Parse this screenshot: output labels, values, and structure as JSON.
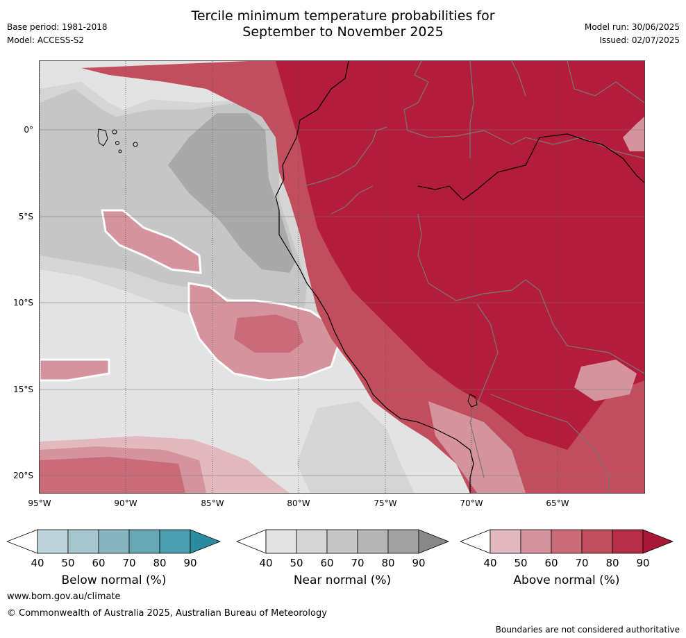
{
  "header": {
    "base_period": "Base period: 1981-2018",
    "model": "Model: ACCESS-S2",
    "title_line1": "Tercile minimum temperature probabilities for",
    "title_line2": "September to November 2025",
    "model_run": "Model run: 30/06/2025",
    "issued": "Issued: 02/07/2025"
  },
  "map": {
    "lat_labels": [
      "0°",
      "5°S",
      "10°S",
      "15°S",
      "20°S"
    ],
    "lon_labels": [
      "95°W",
      "90°W",
      "85°W",
      "80°W",
      "75°W",
      "70°W",
      "65°W"
    ],
    "colors": {
      "ocean_near_40": "#e3e3e3",
      "near_50": "#d5d5d5",
      "near_60": "#c6c6c6",
      "near_70": "#a9a9a9",
      "above_40": "#e1b9bf",
      "above_50": "#d4939d",
      "above_60": "#c96b78",
      "above_70": "#c24d5c",
      "above_80": "#b31c3a"
    }
  },
  "colorbars": [
    {
      "title": "Below normal (%)",
      "ticks": [
        "40",
        "50",
        "60",
        "70",
        "80",
        "90"
      ],
      "colors": [
        "#ffffff",
        "#bcd4d9",
        "#a5c6cd",
        "#87b5c0",
        "#68a8b5",
        "#4a9eae",
        "#2b8ba0"
      ]
    },
    {
      "title": "Near normal (%)",
      "ticks": [
        "40",
        "50",
        "60",
        "70",
        "80",
        "90"
      ],
      "colors": [
        "#ffffff",
        "#e3e3e3",
        "#d5d5d5",
        "#c6c6c6",
        "#b5b5b5",
        "#a2a2a2",
        "#888888"
      ]
    },
    {
      "title": "Above normal (%)",
      "ticks": [
        "40",
        "50",
        "60",
        "70",
        "80",
        "90"
      ],
      "colors": [
        "#ffffff",
        "#e1b9bf",
        "#d4939d",
        "#c96b78",
        "#c24d5c",
        "#b52d46",
        "#a81735"
      ]
    }
  ],
  "footer": {
    "url": "www.bom.gov.au/climate",
    "copyright": "© Commonwealth of Australia 2025, Australian Bureau of Meteorology",
    "disclaimer": "Boundaries are not considered authoritative"
  }
}
